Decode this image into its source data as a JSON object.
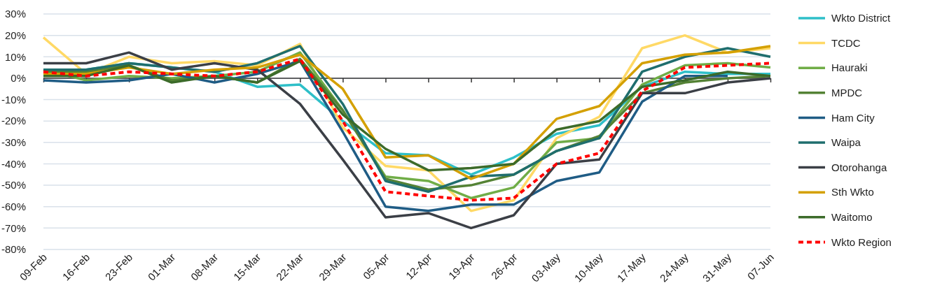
{
  "chart_data": {
    "type": "line",
    "categories": [
      "09-Feb",
      "16-Feb",
      "23-Feb",
      "01-Mar",
      "08-Mar",
      "15-Mar",
      "22-Mar",
      "29-Mar",
      "05-Apr",
      "12-Apr",
      "19-Apr",
      "26-Apr",
      "03-May",
      "10-May",
      "17-May",
      "24-May",
      "31-May",
      "07-Jun"
    ],
    "ylim": [
      -80,
      30
    ],
    "yticks": [
      {
        "value": -80,
        "label": "-80%"
      },
      {
        "value": -70,
        "label": "-70%"
      },
      {
        "value": -60,
        "label": "-60%"
      },
      {
        "value": -50,
        "label": "-50%"
      },
      {
        "value": -40,
        "label": "-40%"
      },
      {
        "value": -30,
        "label": "-30%"
      },
      {
        "value": -20,
        "label": "-20%"
      },
      {
        "value": -10,
        "label": "-10%"
      },
      {
        "value": 0,
        "label": "0%"
      },
      {
        "value": 10,
        "label": "10%"
      },
      {
        "value": 20,
        "label": "20%"
      },
      {
        "value": 30,
        "label": "30%"
      }
    ],
    "grid": "y",
    "legend": "right",
    "marker": "none",
    "series": [
      {
        "name": "Wkto District",
        "color": "#2ebfc8",
        "values": [
          3,
          4,
          7,
          5,
          3,
          -4,
          -3,
          -20,
          -35,
          -36,
          -45,
          -37,
          -26,
          -22,
          -4,
          3,
          2,
          2
        ]
      },
      {
        "name": "TCDC",
        "color": "#ffd966",
        "values": [
          19,
          2,
          10,
          7,
          8,
          6,
          16,
          -23,
          -41,
          -43,
          -62,
          -57,
          -28,
          -18,
          14,
          20,
          12,
          14
        ]
      },
      {
        "name": "Hauraki",
        "color": "#70ad47",
        "values": [
          4,
          -1,
          1,
          0,
          1,
          3,
          12,
          -15,
          -46,
          -48,
          -56,
          -51,
          -30,
          -28,
          -3,
          6,
          7,
          5
        ]
      },
      {
        "name": "MPDC",
        "color": "#548235",
        "values": [
          3,
          3,
          6,
          -1,
          1,
          -2,
          9,
          -15,
          -47,
          -52,
          -50,
          -45,
          -34,
          -27,
          -7,
          -2,
          0,
          1
        ]
      },
      {
        "name": "Ham City",
        "color": "#1f5c85",
        "values": [
          -1,
          -2,
          -1,
          2,
          -2,
          2,
          8,
          -25,
          -60,
          -62,
          -59,
          -59,
          -48,
          -44,
          -11,
          1,
          1,
          null
        ]
      },
      {
        "name": "Waipa",
        "color": "#1f6e6e",
        "values": [
          4,
          4,
          7,
          5,
          3,
          7,
          15,
          -12,
          -48,
          -53,
          -46,
          -45,
          -34,
          -28,
          3,
          10,
          14,
          10
        ]
      },
      {
        "name": "Otorohanga",
        "color": "#3b3f46",
        "values": [
          7,
          7,
          12,
          4,
          7,
          4,
          -12,
          -38,
          -65,
          -63,
          -70,
          -64,
          -40,
          -38,
          -7,
          -7,
          -2,
          0
        ]
      },
      {
        "name": "Sth Wkto",
        "color": "#d4a000",
        "values": [
          2,
          2,
          5,
          2,
          4,
          5,
          11,
          -5,
          -37,
          -36,
          -47,
          -40,
          -19,
          -13,
          7,
          11,
          12,
          15
        ]
      },
      {
        "name": "Waitomo",
        "color": "#3c6b2a",
        "values": [
          1,
          1,
          6,
          -2,
          1,
          -2,
          8,
          -17,
          -33,
          -43,
          -42,
          -40,
          -24,
          -20,
          -4,
          -1,
          3,
          1
        ]
      },
      {
        "name": "Wkto Region",
        "color": "#ff0000",
        "line_style": "dashed",
        "values": [
          3,
          1,
          3,
          2,
          1,
          3,
          9,
          -20,
          -53,
          -55,
          -57,
          -56,
          -40,
          -35,
          -6,
          5,
          6,
          7
        ]
      }
    ]
  }
}
